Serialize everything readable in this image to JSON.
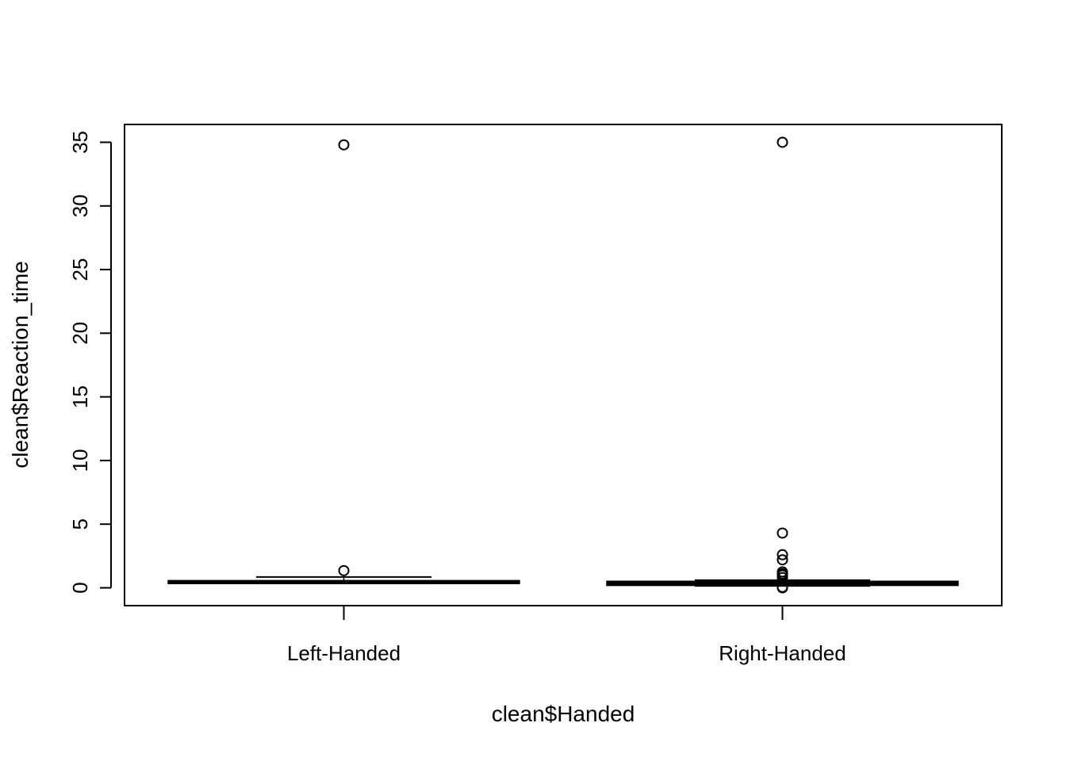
{
  "chart_data": {
    "type": "boxplot",
    "title": "",
    "xlabel": "clean$Handed",
    "ylabel": "clean$Reaction_time",
    "categories": [
      "Left-Handed",
      "Right-Handed"
    ],
    "ylim": [
      -1.4,
      36.4
    ],
    "yticks": [
      0,
      5,
      10,
      15,
      20,
      25,
      30,
      35
    ],
    "grid": false,
    "legend": "none",
    "boxes": [
      {
        "category": "Left-Handed",
        "q1": 0.35,
        "median": 0.45,
        "q3": 0.55,
        "whisker_low": 0.35,
        "whisker_high": 0.85,
        "outliers": [
          1.35,
          34.8
        ]
      },
      {
        "category": "Right-Handed",
        "q1": 0.2,
        "median": 0.35,
        "q3": 0.5,
        "whisker_low": 0.15,
        "whisker_high": 0.6,
        "outliers": [
          0.0,
          0.05,
          0.8,
          1.0,
          1.1,
          1.25,
          2.2,
          2.6,
          4.3,
          35.0
        ]
      }
    ]
  }
}
